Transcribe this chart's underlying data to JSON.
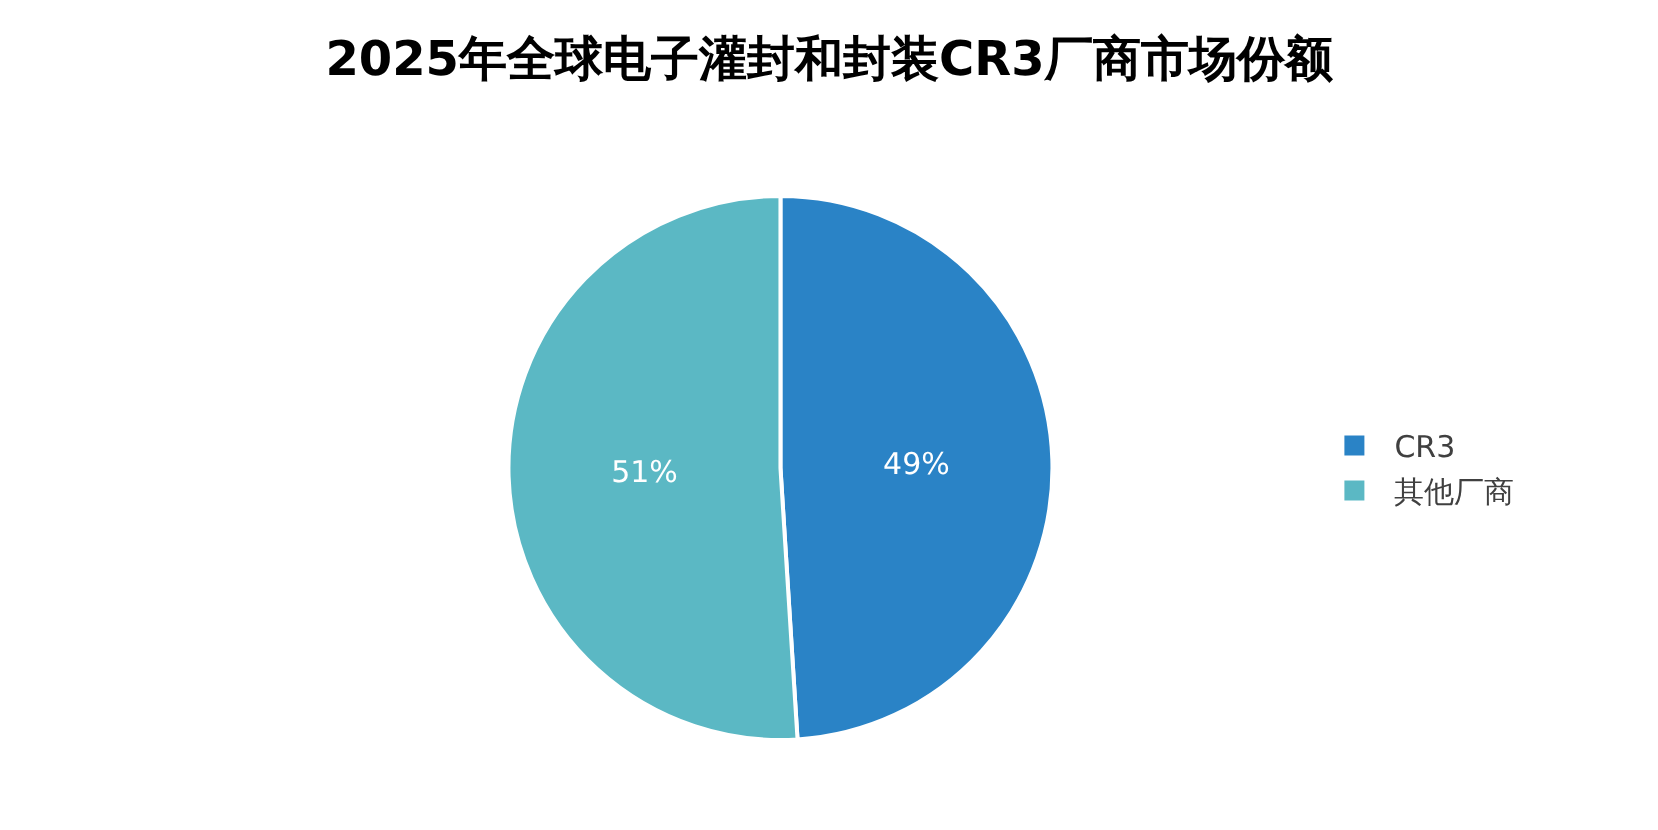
{
  "chart_data": {
    "type": "pie",
    "title": "2025年全球电子灌封和封装CR3厂商市场份额",
    "categories": [
      "CR3",
      "其他厂商"
    ],
    "values": [
      49,
      51
    ],
    "colors": [
      "#2a83c6",
      "#5bb8c4"
    ],
    "value_labels": [
      "49%",
      "51%"
    ],
    "legend": "right"
  }
}
